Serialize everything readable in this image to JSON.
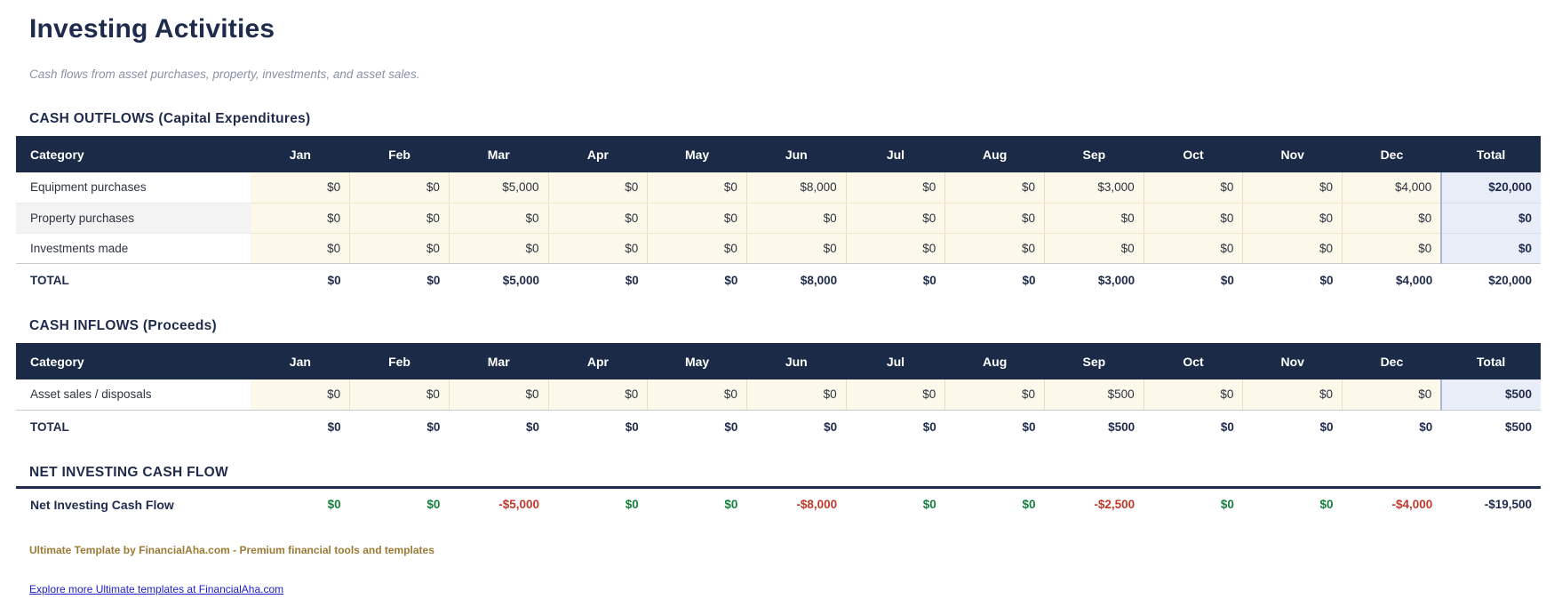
{
  "header": {
    "title": "Investing Activities",
    "subtitle": "Cash flows from asset purchases, property, investments, and asset sales."
  },
  "columns": {
    "category": "Category",
    "months": [
      "Jan",
      "Feb",
      "Mar",
      "Apr",
      "May",
      "Jun",
      "Jul",
      "Aug",
      "Sep",
      "Oct",
      "Nov",
      "Dec"
    ],
    "total": "Total"
  },
  "sections": [
    {
      "id": "cash-outflows",
      "heading": "CASH OUTFLOWS (Capital Expenditures)",
      "rows": [
        {
          "category": "Equipment purchases",
          "values": [
            "$0",
            "$0",
            "$5,000",
            "$0",
            "$0",
            "$8,000",
            "$0",
            "$0",
            "$3,000",
            "$0",
            "$0",
            "$4,000"
          ],
          "total": "$20,000"
        },
        {
          "category": "Property purchases",
          "values": [
            "$0",
            "$0",
            "$0",
            "$0",
            "$0",
            "$0",
            "$0",
            "$0",
            "$0",
            "$0",
            "$0",
            "$0"
          ],
          "total": "$0"
        },
        {
          "category": "Investments made",
          "values": [
            "$0",
            "$0",
            "$0",
            "$0",
            "$0",
            "$0",
            "$0",
            "$0",
            "$0",
            "$0",
            "$0",
            "$0"
          ],
          "total": "$0"
        }
      ],
      "total_row": {
        "label": "TOTAL",
        "values": [
          "$0",
          "$0",
          "$5,000",
          "$0",
          "$0",
          "$8,000",
          "$0",
          "$0",
          "$3,000",
          "$0",
          "$0",
          "$4,000"
        ],
        "total": "$20,000"
      }
    },
    {
      "id": "cash-inflows",
      "heading": "CASH INFLOWS (Proceeds)",
      "rows": [
        {
          "category": "Asset sales / disposals",
          "values": [
            "$0",
            "$0",
            "$0",
            "$0",
            "$0",
            "$0",
            "$0",
            "$0",
            "$500",
            "$0",
            "$0",
            "$0"
          ],
          "total": "$500"
        }
      ],
      "total_row": {
        "label": "TOTAL",
        "values": [
          "$0",
          "$0",
          "$0",
          "$0",
          "$0",
          "$0",
          "$0",
          "$0",
          "$500",
          "$0",
          "$0",
          "$0"
        ],
        "total": "$500"
      }
    },
    {
      "id": "net-investing",
      "heading": "NET INVESTING CASH FLOW",
      "net_row": {
        "label": "Net Investing Cash Flow",
        "values": [
          {
            "text": "$0",
            "tone": "positive"
          },
          {
            "text": "$0",
            "tone": "positive"
          },
          {
            "text": "-$5,000",
            "tone": "negative"
          },
          {
            "text": "$0",
            "tone": "positive"
          },
          {
            "text": "$0",
            "tone": "positive"
          },
          {
            "text": "-$8,000",
            "tone": "negative"
          },
          {
            "text": "$0",
            "tone": "positive"
          },
          {
            "text": "$0",
            "tone": "positive"
          },
          {
            "text": "-$2,500",
            "tone": "negative"
          },
          {
            "text": "$0",
            "tone": "positive"
          },
          {
            "text": "$0",
            "tone": "positive"
          },
          {
            "text": "-$4,000",
            "tone": "negative"
          }
        ],
        "total": {
          "text": "-$19,500",
          "tone": "neutral"
        }
      }
    }
  ],
  "footer": {
    "credit": "Ultimate Template by FinancialAha.com - Premium financial tools and templates",
    "link_text": "Explore more Ultimate templates at FinancialAha.com"
  },
  "colors": {
    "header_navy": "#1b2a47",
    "accent_navy": "#1f2b4c",
    "input_cell_cream": "#fdf9ea",
    "total_column_blue": "#e8edf8",
    "positive_green": "#15803d",
    "negative_red": "#c0392b",
    "credit_gold": "#9c7a35",
    "link_blue": "#2020cc"
  }
}
